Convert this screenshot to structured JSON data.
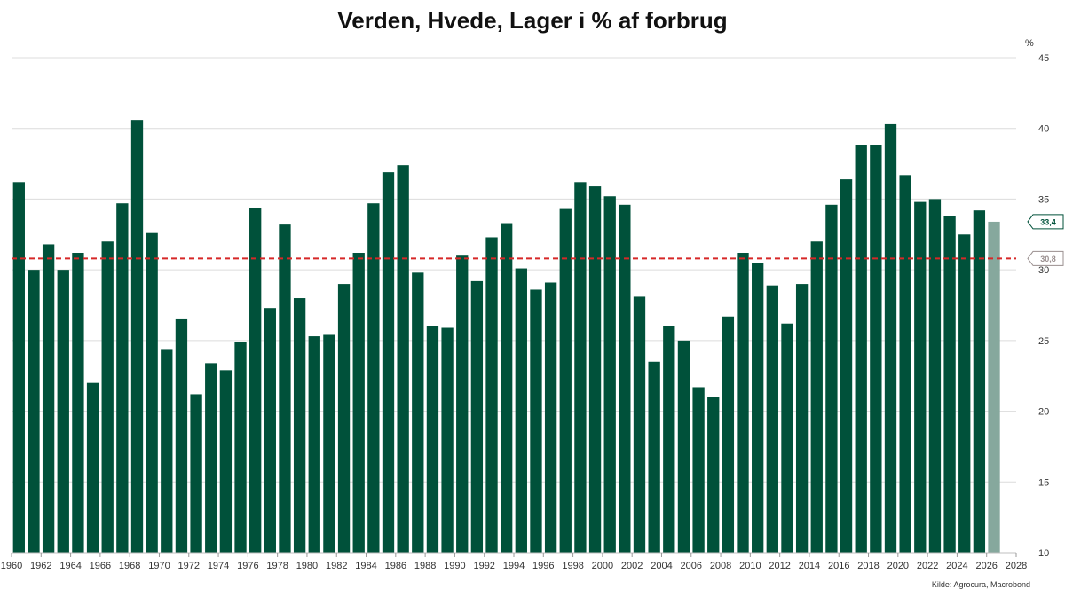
{
  "colors": {
    "bar": "#00513a",
    "bar_forecast": "#86a89d",
    "average_line": "#d62828",
    "grid": "#dcdcdc",
    "latest_label": "#00513a",
    "average_label": "#9a8f8f"
  },
  "chart_data": {
    "type": "bar",
    "title": "Verden, Hvede, Lager i % af forbrug",
    "ylabel": "%",
    "source": "Kilde: Agrocura, Macrobond",
    "x": [
      1960,
      1961,
      1962,
      1963,
      1964,
      1965,
      1966,
      1967,
      1968,
      1969,
      1970,
      1971,
      1972,
      1973,
      1974,
      1975,
      1976,
      1977,
      1978,
      1979,
      1980,
      1981,
      1982,
      1983,
      1984,
      1985,
      1986,
      1987,
      1988,
      1989,
      1990,
      1991,
      1992,
      1993,
      1994,
      1995,
      1996,
      1997,
      1998,
      1999,
      2000,
      2001,
      2002,
      2003,
      2004,
      2005,
      2006,
      2007,
      2008,
      2009,
      2010,
      2011,
      2012,
      2013,
      2014,
      2015,
      2016,
      2017,
      2018,
      2019,
      2020,
      2021,
      2022,
      2023,
      2024,
      2025,
      2026
    ],
    "values": [
      36.2,
      30.0,
      31.8,
      30.0,
      31.2,
      22.0,
      32.0,
      34.7,
      40.6,
      32.6,
      24.4,
      26.5,
      21.2,
      23.4,
      22.9,
      24.9,
      34.4,
      27.3,
      33.2,
      28.0,
      25.3,
      25.4,
      29.0,
      31.2,
      34.7,
      36.9,
      37.4,
      29.8,
      26.0,
      25.9,
      31.0,
      29.2,
      32.3,
      33.3,
      30.1,
      28.6,
      29.1,
      34.3,
      36.2,
      35.9,
      35.2,
      34.6,
      28.1,
      23.5,
      26.0,
      25.0,
      21.7,
      21.0,
      26.7,
      31.2,
      30.5,
      28.9,
      26.2,
      29.0,
      32.0,
      34.6,
      36.4,
      38.8,
      38.8,
      40.3,
      36.7,
      34.8,
      35.0,
      33.8,
      32.5,
      34.2,
      33.4
    ],
    "forecast_years": [
      2026
    ],
    "average": 30.8,
    "latest_value_label": "33,4",
    "average_value_label": "30,8",
    "xlim": [
      1960,
      2028
    ],
    "ylim": [
      10,
      45
    ],
    "x_ticks": [
      "1960",
      "1962",
      "1964",
      "1966",
      "1968",
      "1970",
      "1972",
      "1974",
      "1976",
      "1978",
      "1980",
      "1982",
      "1984",
      "1986",
      "1988",
      "1990",
      "1992",
      "1994",
      "1996",
      "1998",
      "2000",
      "2002",
      "2004",
      "2006",
      "2008",
      "2010",
      "2012",
      "2014",
      "2016",
      "2018",
      "2020",
      "2022",
      "2024",
      "2026",
      "2028"
    ],
    "y_ticks": [
      "10",
      "15",
      "20",
      "25",
      "30",
      "35",
      "40",
      "45"
    ],
    "grid": true,
    "y_axis_position": "right"
  }
}
